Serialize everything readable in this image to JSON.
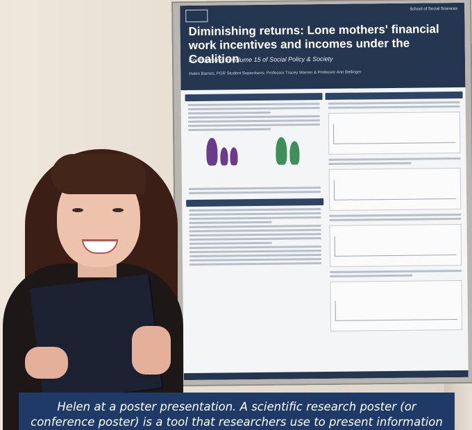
{
  "poster": {
    "school": "School of Social Sciences",
    "title": "Diminishing returns: Lone mothers' financial work incentives and incomes under the Coalition",
    "subtitle": "Forthcoming in volume 15 of Social Policy & Society",
    "authors": "Helen Barnes, PGR Student        Supervisors: Professor Tracey Warren & Professor Ann Bellinger",
    "colors": {
      "header": "#24364f",
      "section": "#2e4464"
    }
  },
  "caption": {
    "text": "Helen at a poster presentation. A scientific research poster (or conference poster) is a tool that researchers use to present information in a structured way."
  }
}
